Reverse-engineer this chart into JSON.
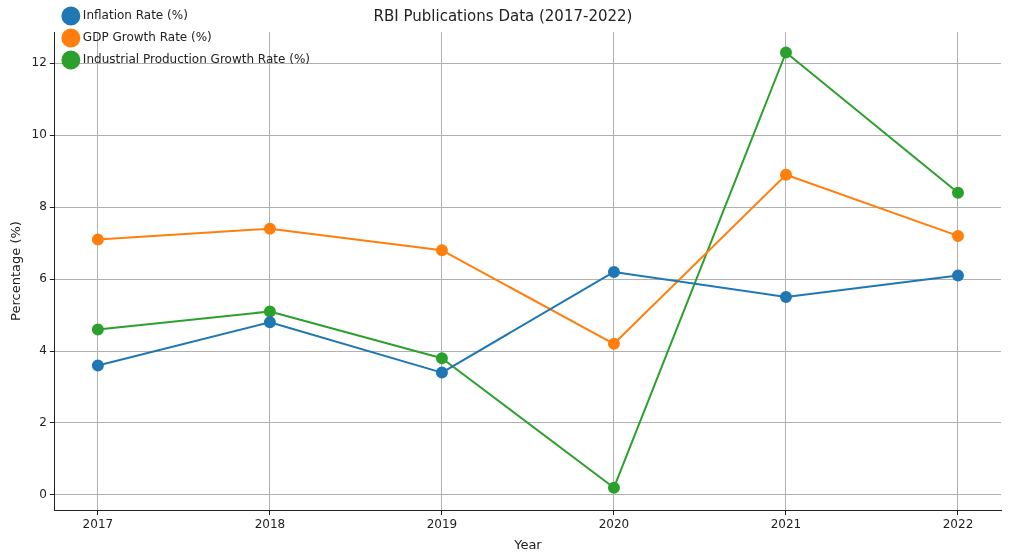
{
  "chart_data": {
    "type": "line",
    "title": "RBI Publications Data (2017-2022)",
    "xlabel": "Year",
    "ylabel": "Percentage (%)",
    "x": [
      2017,
      2018,
      2019,
      2020,
      2021,
      2022
    ],
    "series": [
      {
        "name": "Inflation Rate (%)",
        "color": "#1f77b4",
        "values": [
          3.6,
          4.8,
          3.4,
          6.2,
          5.5,
          6.1
        ]
      },
      {
        "name": "GDP Growth Rate (%)",
        "color": "#ff7f0e",
        "values": [
          7.1,
          7.4,
          6.8,
          4.2,
          8.9,
          7.2
        ]
      },
      {
        "name": "Industrial Production Growth Rate (%)",
        "color": "#2ca02c",
        "values": [
          4.6,
          5.1,
          3.8,
          0.2,
          12.3,
          8.4
        ]
      }
    ],
    "xlim": [
      2016.75,
      2022.25
    ],
    "xticks": [
      2017,
      2018,
      2019,
      2020,
      2021,
      2022
    ],
    "ylim": [
      -0.42,
      12.87
    ],
    "yticks": [
      0,
      2,
      4,
      6,
      8,
      10,
      12
    ],
    "grid": true,
    "legend": "top left",
    "marker": "circle",
    "line_style": "solid"
  }
}
